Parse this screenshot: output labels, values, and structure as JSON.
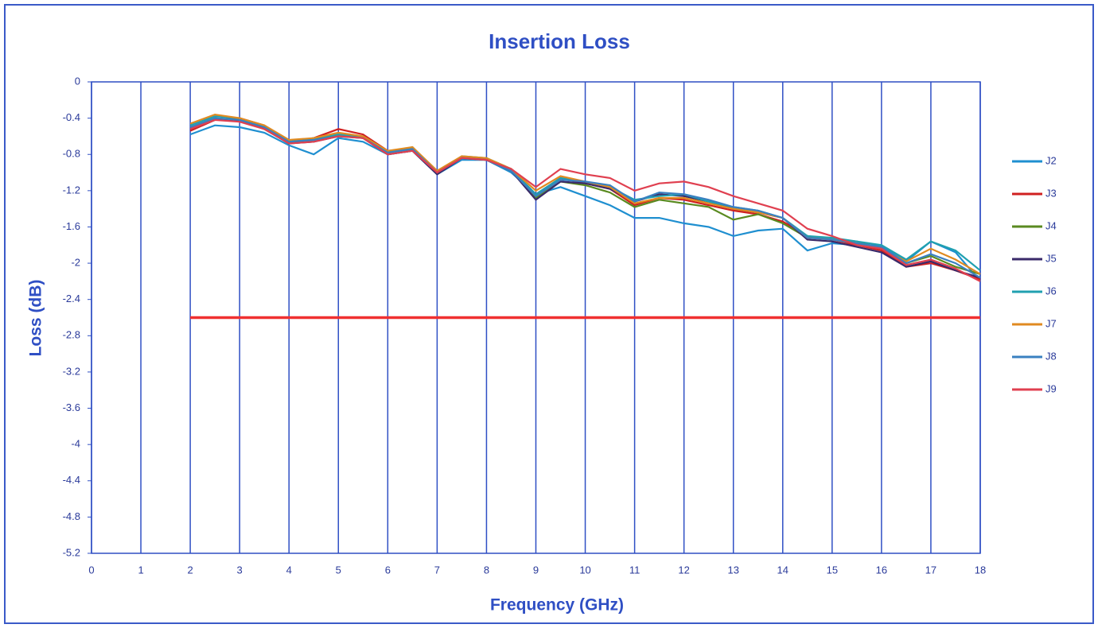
{
  "chart_data": {
    "type": "line",
    "title": "Insertion Loss",
    "xlabel": "Frequency (GHz)",
    "ylabel": "Loss (dB)",
    "xlim": [
      0,
      18
    ],
    "xticks": [
      0,
      1,
      2,
      3,
      4,
      5,
      6,
      7,
      8,
      9,
      10,
      11,
      12,
      13,
      14,
      15,
      16,
      17,
      18
    ],
    "ylim": [
      -5.2,
      0
    ],
    "yticks": [
      0,
      -0.4,
      -0.8,
      -1.2,
      -1.6,
      -2,
      -2.4,
      -2.8,
      -3.2,
      -3.6,
      -4,
      -4.4,
      -4.8,
      -5.2
    ],
    "grid": "x",
    "legend": "right",
    "x": [
      2,
      2.5,
      3,
      3.5,
      4,
      4.5,
      5,
      5.5,
      6,
      6.5,
      7,
      7.5,
      8,
      8.5,
      9,
      9.5,
      10,
      10.5,
      11,
      11.5,
      12,
      12.5,
      13,
      13.5,
      14,
      14.5,
      15,
      15.5,
      16,
      16.5,
      17,
      17.5,
      18
    ],
    "series": [
      {
        "name": "J2",
        "color": "#1f8fd0",
        "values": [
          -0.58,
          -0.48,
          -0.5,
          -0.56,
          -0.7,
          -0.8,
          -0.62,
          -0.66,
          -0.8,
          -0.76,
          -1.02,
          -0.86,
          -0.86,
          -1.0,
          -1.24,
          -1.16,
          -1.26,
          -1.36,
          -1.5,
          -1.5,
          -1.56,
          -1.6,
          -1.7,
          -1.64,
          -1.62,
          -1.86,
          -1.78,
          -1.8,
          -1.8,
          -1.98,
          -1.76,
          -1.88,
          -2.2
        ]
      },
      {
        "name": "J3",
        "color": "#d02020",
        "values": [
          -0.54,
          -0.42,
          -0.4,
          -0.48,
          -0.66,
          -0.62,
          -0.52,
          -0.58,
          -0.76,
          -0.74,
          -1.0,
          -0.84,
          -0.86,
          -0.98,
          -1.24,
          -1.06,
          -1.12,
          -1.18,
          -1.36,
          -1.28,
          -1.3,
          -1.36,
          -1.42,
          -1.46,
          -1.54,
          -1.7,
          -1.74,
          -1.8,
          -1.86,
          -2.04,
          -2.0,
          -2.08,
          -2.18
        ]
      },
      {
        "name": "J4",
        "color": "#5a8a20",
        "values": [
          -0.5,
          -0.4,
          -0.42,
          -0.5,
          -0.68,
          -0.64,
          -0.58,
          -0.62,
          -0.78,
          -0.74,
          -1.0,
          -0.84,
          -0.84,
          -0.98,
          -1.28,
          -1.1,
          -1.14,
          -1.22,
          -1.38,
          -1.3,
          -1.34,
          -1.38,
          -1.52,
          -1.46,
          -1.56,
          -1.72,
          -1.74,
          -1.76,
          -1.84,
          -2.0,
          -1.92,
          -2.04,
          -2.12
        ]
      },
      {
        "name": "J5",
        "color": "#3a2a6a",
        "values": [
          -0.52,
          -0.42,
          -0.42,
          -0.52,
          -0.68,
          -0.66,
          -0.6,
          -0.62,
          -0.8,
          -0.76,
          -1.02,
          -0.84,
          -0.86,
          -0.98,
          -1.3,
          -1.1,
          -1.12,
          -1.18,
          -1.32,
          -1.24,
          -1.26,
          -1.32,
          -1.4,
          -1.44,
          -1.5,
          -1.74,
          -1.76,
          -1.82,
          -1.88,
          -2.04,
          -1.98,
          -2.08,
          -2.16
        ]
      },
      {
        "name": "J6",
        "color": "#20a0b0",
        "values": [
          -0.48,
          -0.38,
          -0.4,
          -0.5,
          -0.66,
          -0.62,
          -0.58,
          -0.6,
          -0.78,
          -0.72,
          -1.0,
          -0.82,
          -0.84,
          -0.96,
          -1.24,
          -1.06,
          -1.1,
          -1.16,
          -1.3,
          -1.26,
          -1.24,
          -1.32,
          -1.38,
          -1.42,
          -1.5,
          -1.7,
          -1.72,
          -1.76,
          -1.8,
          -1.96,
          -1.76,
          -1.86,
          -2.08
        ]
      },
      {
        "name": "J7",
        "color": "#e08a20",
        "values": [
          -0.46,
          -0.36,
          -0.4,
          -0.48,
          -0.64,
          -0.62,
          -0.56,
          -0.6,
          -0.76,
          -0.72,
          -0.98,
          -0.82,
          -0.84,
          -0.96,
          -1.2,
          -1.04,
          -1.1,
          -1.16,
          -1.34,
          -1.28,
          -1.28,
          -1.34,
          -1.4,
          -1.44,
          -1.5,
          -1.72,
          -1.74,
          -1.78,
          -1.84,
          -1.98,
          -1.84,
          -1.96,
          -2.12
        ]
      },
      {
        "name": "J8",
        "color": "#3a80c0",
        "values": [
          -0.5,
          -0.4,
          -0.42,
          -0.5,
          -0.66,
          -0.64,
          -0.6,
          -0.62,
          -0.78,
          -0.74,
          -1.0,
          -0.84,
          -0.86,
          -0.98,
          -1.26,
          -1.08,
          -1.1,
          -1.14,
          -1.32,
          -1.22,
          -1.24,
          -1.3,
          -1.38,
          -1.42,
          -1.5,
          -1.72,
          -1.74,
          -1.78,
          -1.82,
          -2.0,
          -1.9,
          -2.0,
          -2.16
        ]
      },
      {
        "name": "J9",
        "color": "#e04050",
        "values": [
          -0.52,
          -0.42,
          -0.44,
          -0.52,
          -0.68,
          -0.66,
          -0.6,
          -0.62,
          -0.8,
          -0.76,
          -1.0,
          -0.84,
          -0.86,
          -0.96,
          -1.16,
          -0.96,
          -1.02,
          -1.06,
          -1.2,
          -1.12,
          -1.1,
          -1.16,
          -1.26,
          -1.34,
          -1.42,
          -1.62,
          -1.7,
          -1.8,
          -1.84,
          -2.02,
          -1.96,
          -2.06,
          -2.2
        ]
      },
      {
        "color": "#f03030",
        "x": [
          2,
          18
        ],
        "values": [
          -2.6,
          -2.6
        ]
      }
    ]
  }
}
